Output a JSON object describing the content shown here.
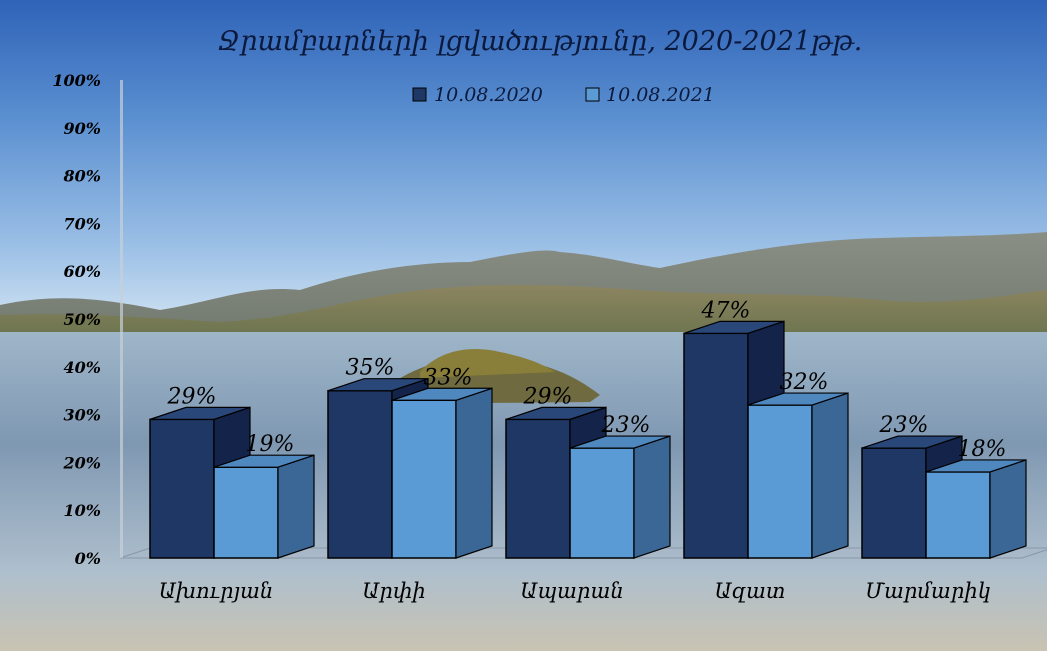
{
  "chart_data": {
    "type": "bar",
    "title": "Ջրամբարների լցվածությունը,  2020-2021թթ.",
    "categories": [
      "Ախուրյան",
      "Արփի",
      "Ապարան",
      "Ազատ",
      "Մարմարիկ"
    ],
    "series": [
      {
        "name": "10.08.2020",
        "values": [
          29,
          35,
          29,
          47,
          23
        ],
        "labels": [
          "29%",
          "35%",
          "29%",
          "47%",
          "23%"
        ]
      },
      {
        "name": "10.08.2021",
        "values": [
          19,
          33,
          23,
          32,
          18
        ],
        "labels": [
          "19%",
          "33%",
          "23%",
          "32%",
          "18%"
        ]
      }
    ],
    "yticks": [
      "0%",
      "10%",
      "20%",
      "30%",
      "40%",
      "50%",
      "60%",
      "70%",
      "80%",
      "90%",
      "100%"
    ],
    "ylim": [
      0,
      100
    ],
    "legend": "top",
    "grid": false,
    "colors": {
      "series1_front": "#1f3764",
      "series1_side": "#13234a",
      "series1_top": "#2a477a",
      "series2_front": "#5a9bd5",
      "series2_side": "#3a6795",
      "series2_top": "#4f87bf"
    }
  }
}
